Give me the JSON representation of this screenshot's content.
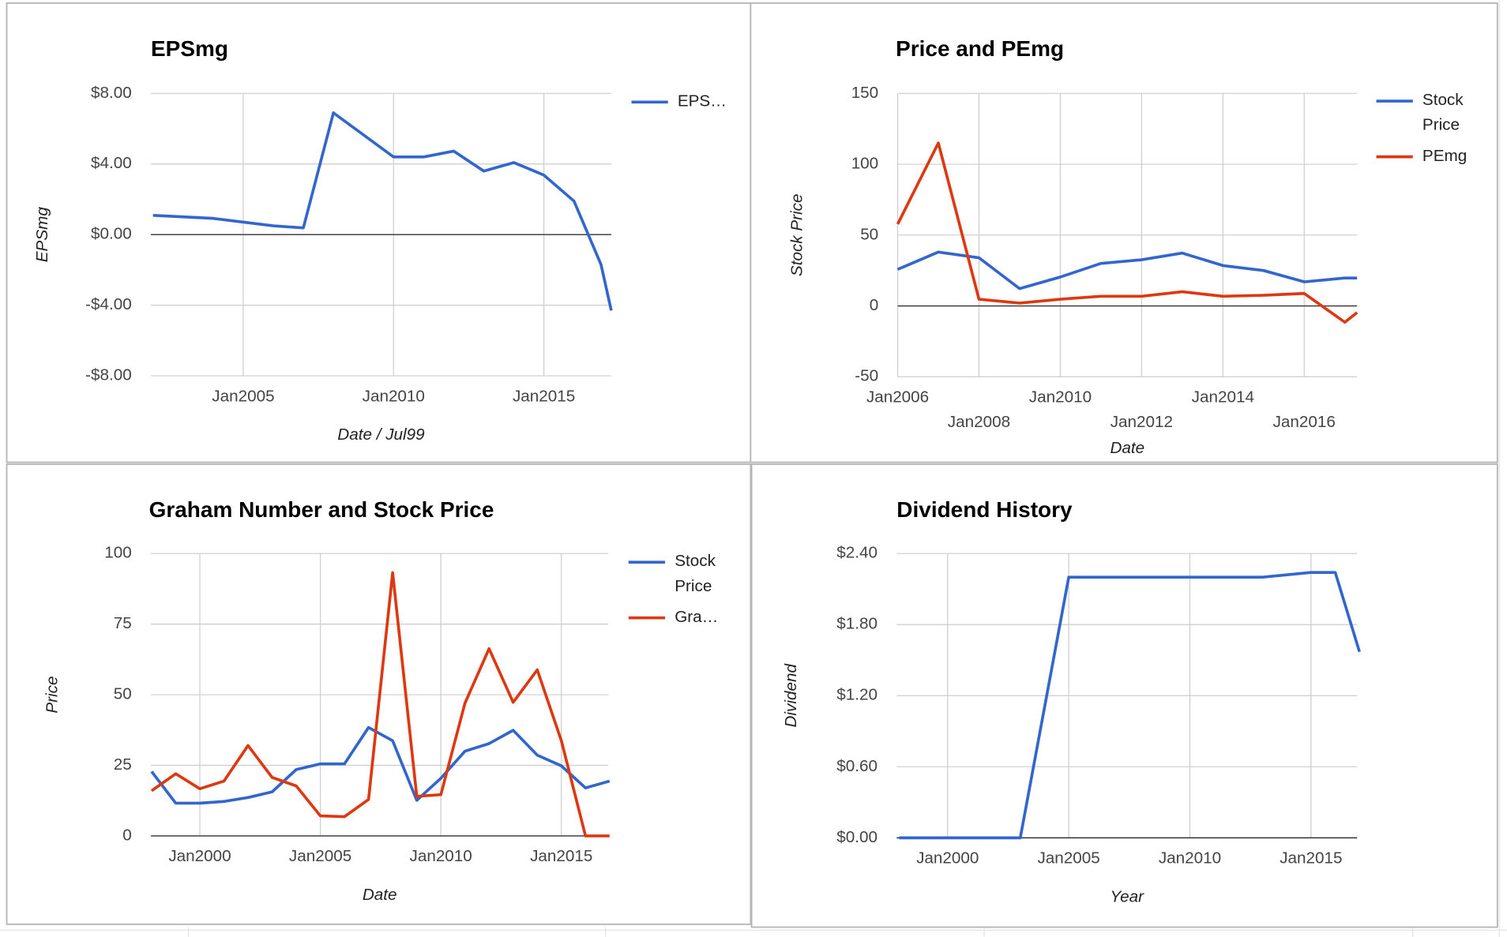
{
  "chart_data": [
    {
      "type": "line",
      "title": "EPSmg",
      "y_label": "EPSmg",
      "x_label": "Date / Jul99",
      "x": [
        2002,
        2004,
        2006,
        2007,
        2008,
        2010,
        2011,
        2012,
        2013,
        2014,
        2015,
        2016,
        2016.9,
        2017.24
      ],
      "series": [
        {
          "name": "EPS…",
          "color": "#3366cc",
          "values": [
            1.09,
            0.92,
            0.5,
            0.38,
            6.9,
            4.4,
            4.4,
            4.73,
            3.6,
            4.08,
            3.37,
            1.9,
            -1.7,
            -4.3
          ]
        }
      ],
      "xlim": [
        2001.93,
        2017.24
      ],
      "xticks": [
        {
          "value": 2005,
          "label": "Jan2005"
        },
        {
          "value": 2010,
          "label": "Jan2010"
        },
        {
          "value": 2015,
          "label": "Jan2015"
        }
      ],
      "ylim": [
        -8,
        8
      ],
      "yticks": [
        {
          "value": -8,
          "label": "-$8.00"
        },
        {
          "value": -4,
          "label": "-$4.00"
        },
        {
          "value": 0,
          "label": "$0.00"
        },
        {
          "value": 4,
          "label": "$4.00"
        },
        {
          "value": 8,
          "label": "$8.00"
        }
      ],
      "grid": true,
      "legend": "right"
    },
    {
      "type": "line",
      "title": "Price and PEmg",
      "y_label": "Stock Price",
      "x_label": "Date",
      "x": [
        2006,
        2007,
        2008,
        2009,
        2010,
        2011,
        2012,
        2013,
        2014,
        2015,
        2016,
        2017,
        2017.3
      ],
      "series": [
        {
          "name": "Stock Price",
          "color": "#3366cc",
          "values": [
            25.8,
            38,
            34,
            12.2,
            20.4,
            30,
            32.6,
            37.3,
            28.5,
            25,
            17,
            19.7,
            19.7
          ]
        },
        {
          "name": "PEmg",
          "color": "#dc3912",
          "values": [
            57.7,
            115,
            4.7,
            2,
            4.7,
            6.8,
            6.8,
            10,
            6.8,
            7.5,
            8.8,
            -11.5,
            -4.7
          ]
        }
      ],
      "xlim": [
        2006,
        2017.3
      ],
      "xticks": [
        {
          "value": 2006,
          "label": "Jan2006"
        },
        {
          "value": 2008,
          "label": "Jan2008"
        },
        {
          "value": 2010,
          "label": "Jan2010"
        },
        {
          "value": 2012,
          "label": "Jan2012"
        },
        {
          "value": 2014,
          "label": "Jan2014"
        },
        {
          "value": 2016,
          "label": "Jan2016"
        }
      ],
      "ylim": [
        -50,
        150
      ],
      "yticks": [
        -50,
        0,
        50,
        100,
        150
      ],
      "grid": true,
      "legend": "right"
    },
    {
      "type": "line",
      "title": "Graham Number and Stock Price",
      "y_label": "Price",
      "x_label": "Date",
      "x": [
        1998,
        1999,
        2000,
        2001,
        2002,
        2003,
        2004,
        2005,
        2006,
        2007,
        2008,
        2009,
        2010,
        2011,
        2012,
        2013,
        2014,
        2015,
        2016,
        2017
      ],
      "series": [
        {
          "name": "Stock Price",
          "color": "#3366cc",
          "values": [
            22.8,
            11.6,
            11.6,
            12.2,
            13.6,
            15.6,
            23.5,
            25.5,
            25.5,
            38.4,
            33.7,
            12.6,
            20.4,
            30,
            32.7,
            37.4,
            28.6,
            24.8,
            17,
            19.4
          ]
        },
        {
          "name": "Gra…",
          "color": "#dc3912",
          "values": [
            16,
            22,
            16.7,
            19.4,
            32,
            20.7,
            17.7,
            7.1,
            6.8,
            12.9,
            93.2,
            14,
            14.6,
            47,
            66.3,
            47.3,
            58.8,
            33.7,
            0,
            0
          ]
        }
      ],
      "xlim": [
        1997.97,
        2016.95
      ],
      "xticks": [
        {
          "value": 2000,
          "label": "Jan2000"
        },
        {
          "value": 2005,
          "label": "Jan2005"
        },
        {
          "value": 2010,
          "label": "Jan2010"
        },
        {
          "value": 2015,
          "label": "Jan2015"
        }
      ],
      "ylim": [
        0,
        100
      ],
      "yticks": [
        0,
        25,
        50,
        75,
        100
      ],
      "grid": true,
      "legend": "right"
    },
    {
      "type": "line",
      "title": "Dividend History",
      "y_label": "Dividend",
      "x_label": "Year",
      "x": [
        1998,
        1999,
        2000,
        2001,
        2002,
        2003,
        2005,
        2006,
        2007,
        2008,
        2009,
        2010,
        2011,
        2012,
        2013,
        2014,
        2015,
        2016,
        2017
      ],
      "series": [
        {
          "color": "#3366cc",
          "values": [
            0,
            0,
            0,
            0,
            0,
            0,
            2.2,
            2.2,
            2.2,
            2.2,
            2.2,
            2.2,
            2.2,
            2.2,
            2.2,
            2.22,
            2.24,
            2.24,
            1.57
          ]
        }
      ],
      "xlim": [
        1997.9,
        2016.9
      ],
      "xticks": [
        {
          "value": 2000,
          "label": "Jan2000"
        },
        {
          "value": 2005,
          "label": "Jan2005"
        },
        {
          "value": 2010,
          "label": "Jan2010"
        },
        {
          "value": 2015,
          "label": "Jan2015"
        }
      ],
      "ylim": [
        0,
        2.4
      ],
      "yticks": [
        {
          "value": 0,
          "label": "$0.00"
        },
        {
          "value": 0.6,
          "label": "$0.60"
        },
        {
          "value": 1.2,
          "label": "$1.20"
        },
        {
          "value": 1.8,
          "label": "$1.80"
        },
        {
          "value": 2.4,
          "label": "$2.40"
        }
      ],
      "grid": true
    }
  ]
}
